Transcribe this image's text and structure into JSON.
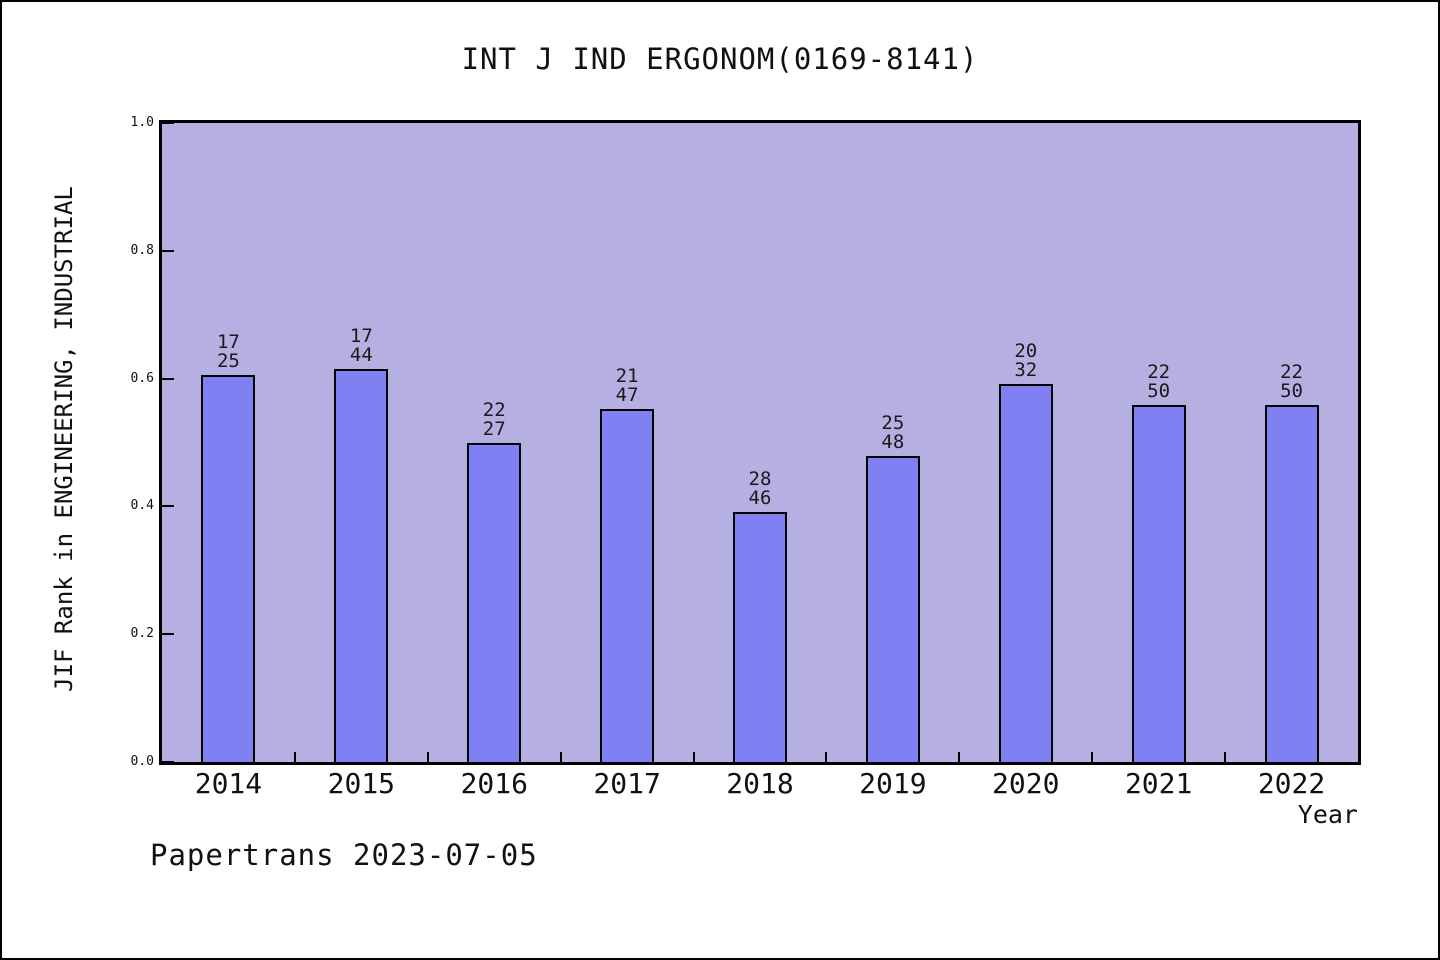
{
  "title": "INT J IND ERGONOM(0169-8141)",
  "footer": "Papertrans 2023-07-05",
  "colors": {
    "page_bg": "#ffffff",
    "page_border": "#000000",
    "plot_bg": "#b6b0e2",
    "bar_fill": "#7f80f2",
    "bar_edge": "#000000",
    "text": "#111111"
  },
  "chart_data": {
    "type": "bar",
    "title": "INT J IND ERGONOM(0169-8141)",
    "xlabel": "Year",
    "ylabel": "JIF Rank in ENGINEERING, INDUSTRIAL",
    "categories": [
      "2014",
      "2015",
      "2016",
      "2017",
      "2018",
      "2019",
      "2020",
      "2021",
      "2022"
    ],
    "values": [
      0.605,
      0.615,
      0.5,
      0.552,
      0.392,
      0.479,
      0.592,
      0.559,
      0.559
    ],
    "bar_labels": [
      [
        "17",
        "25"
      ],
      [
        "17",
        "44"
      ],
      [
        "22",
        "27"
      ],
      [
        "21",
        "47"
      ],
      [
        "28",
        "46"
      ],
      [
        "25",
        "48"
      ],
      [
        "20",
        "32"
      ],
      [
        "22",
        "50"
      ],
      [
        "22",
        "50"
      ]
    ],
    "ylim": [
      0.0,
      1.0
    ],
    "yticks": [
      "1.0",
      "0.8",
      "0.6",
      "0.4",
      "0.2",
      "0.0"
    ],
    "grid": false,
    "legend": null
  }
}
